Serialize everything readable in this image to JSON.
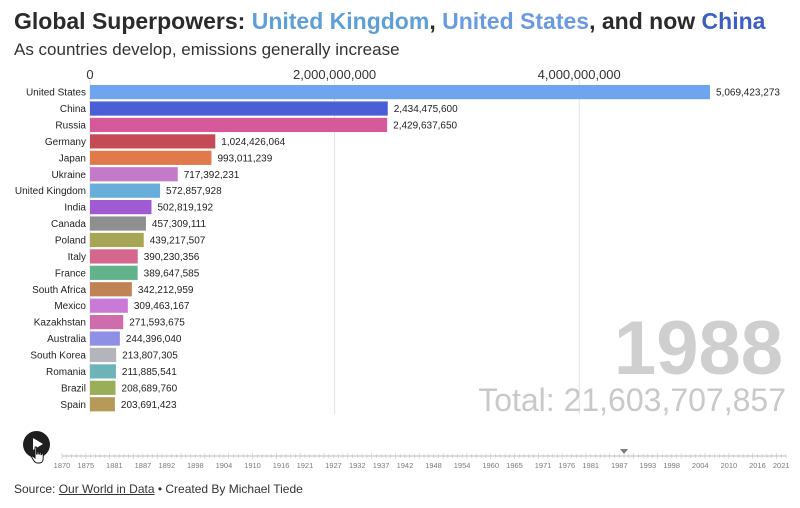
{
  "header": {
    "title_prefix": "Global Superpowers: ",
    "title_uk": "United Kingdom",
    "title_sep1": ", ",
    "title_us": "United States",
    "title_sep2": ", and now ",
    "title_cn": "China",
    "subtitle": "As countries develop, emissions generally increase"
  },
  "colors": {
    "title_uk": "#5f9fd8",
    "title_us": "#6a9be0",
    "title_cn": "#3d5fc4",
    "year_text": "#cfcfcf",
    "total_text": "#c9c9c9"
  },
  "chart_data": {
    "type": "bar",
    "orientation": "horizontal",
    "xlim": [
      0,
      5069423273
    ],
    "x_ticks": [
      {
        "value": 0,
        "label": "0"
      },
      {
        "value": 2000000000,
        "label": "2,000,000,000"
      },
      {
        "value": 4000000000,
        "label": "4,000,000,000"
      }
    ],
    "grid": true,
    "categories": [
      "United States",
      "China",
      "Russia",
      "Germany",
      "Japan",
      "Ukraine",
      "United Kingdom",
      "India",
      "Canada",
      "Poland",
      "Italy",
      "France",
      "South Africa",
      "Mexico",
      "Kazakhstan",
      "Australia",
      "South Korea",
      "Romania",
      "Brazil",
      "Spain"
    ],
    "values": [
      5069423273,
      2434475600,
      2429637650,
      1024426064,
      993011239,
      717392231,
      572857928,
      502819192,
      457309111,
      439217507,
      390230356,
      389647585,
      342212959,
      309463167,
      271593675,
      244396040,
      213807305,
      211885541,
      208689760,
      203691423
    ],
    "value_labels": [
      "5,069,423,273",
      "2,434,475,600",
      "2,429,637,650",
      "1,024,426,064",
      "993,011,239",
      "717,392,231",
      "572,857,928",
      "502,819,192",
      "457,309,111",
      "439,217,507",
      "390,230,356",
      "389,647,585",
      "342,212,959",
      "309,463,167",
      "271,593,675",
      "244,396,040",
      "213,807,305",
      "211,885,541",
      "208,689,760",
      "203,691,423"
    ],
    "bar_colors": [
      "#6fa4ee",
      "#4a5fd6",
      "#d65a99",
      "#c64a55",
      "#e07a4a",
      "#c57ac9",
      "#67aedb",
      "#a05ad2",
      "#8f8f8f",
      "#a6a655",
      "#d5668c",
      "#62b28c",
      "#c18356",
      "#c97ad6",
      "#cf6cab",
      "#8f8fe6",
      "#b4b4bd",
      "#6db4b8",
      "#9aae5a",
      "#b79a58"
    ],
    "year": "1988",
    "total_label": "Total: 21,603,707,857"
  },
  "timeline": {
    "labels": [
      "1870",
      "1875",
      "1881",
      "1887",
      "1892",
      "1898",
      "1904",
      "1910",
      "1916",
      "1921",
      "1927",
      "1932",
      "1937",
      "1942",
      "1948",
      "1954",
      "1960",
      "1965",
      "1971",
      "1976",
      "1981",
      "1987",
      "1993",
      "1998",
      "2004",
      "2010",
      "2016",
      "2021"
    ],
    "current": "1988"
  },
  "controls": {
    "play_label": "Play"
  },
  "footer": {
    "prefix": "Source: ",
    "link": "Our World in Data",
    "suffix": " • Created By Michael Tiede"
  }
}
